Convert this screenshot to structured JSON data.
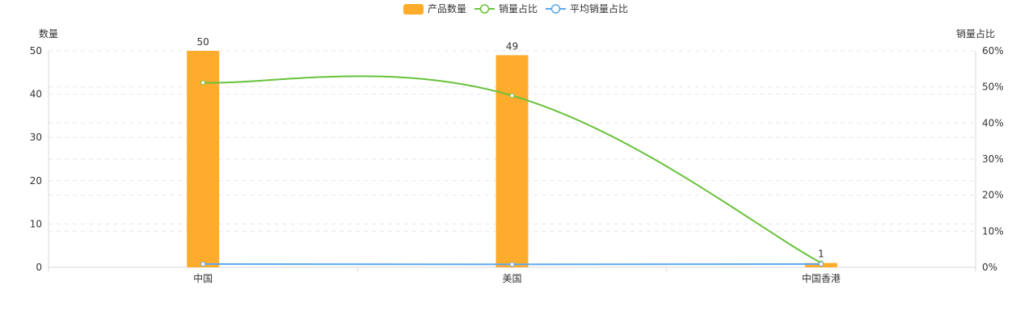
{
  "colors": {
    "bar": "#FFAC2C",
    "line1": "#67C23A",
    "line2": "#5BA8F0",
    "grid": "#E6E6E6",
    "axis": "#D9D9D9",
    "text": "#333333"
  },
  "legend": {
    "items": [
      {
        "label": "产品数量",
        "type": "bar",
        "color": "#FFAC2C"
      },
      {
        "label": "销量占比",
        "type": "line",
        "color": "#67C23A"
      },
      {
        "label": "平均销量占比",
        "type": "line",
        "color": "#5BA8F0"
      }
    ]
  },
  "chart_data": {
    "type": "bar",
    "categories": [
      "中国",
      "美国",
      "中国香港"
    ],
    "series": [
      {
        "name": "产品数量",
        "type": "bar",
        "axis": "left",
        "values": [
          50,
          49,
          1
        ],
        "labels": [
          "50",
          "49",
          "1"
        ]
      },
      {
        "name": "销量占比",
        "type": "line",
        "axis": "right",
        "values": [
          51.2,
          47.6,
          1.2
        ]
      },
      {
        "name": "平均销量占比",
        "type": "line",
        "axis": "right",
        "values": [
          0.9,
          0.8,
          0.9
        ]
      }
    ],
    "ylabel": "数量",
    "ylabel_right": "销量占比",
    "ylim": [
      0,
      50
    ],
    "ylim_right": [
      0,
      60
    ],
    "yticks": [
      "0",
      "10",
      "20",
      "30",
      "40",
      "50"
    ],
    "yticks_right": [
      "0%",
      "10%",
      "20%",
      "30%",
      "40%",
      "50%",
      "60%"
    ],
    "grid": true,
    "legend_position": "top-center"
  }
}
